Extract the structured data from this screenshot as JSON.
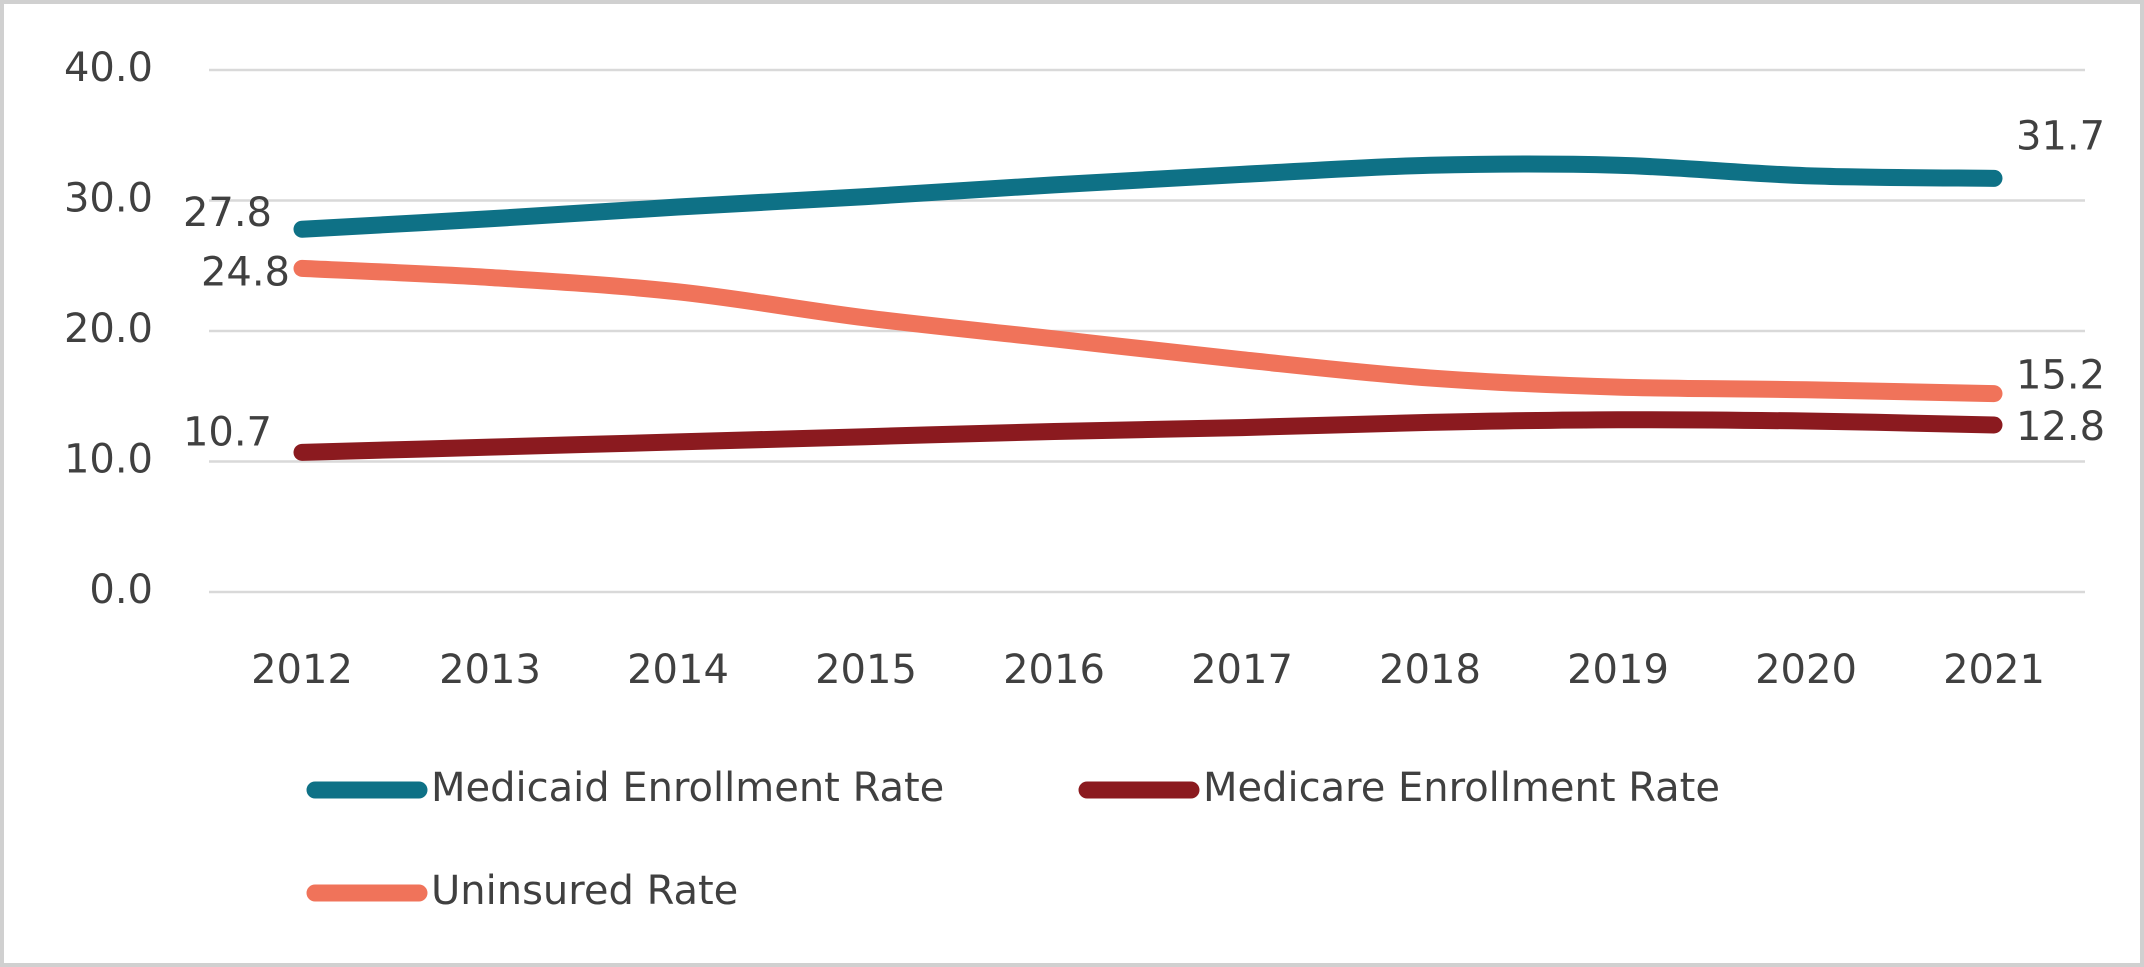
{
  "chart_data": {
    "type": "line",
    "categories": [
      "2012",
      "2013",
      "2014",
      "2015",
      "2016",
      "2017",
      "2018",
      "2019",
      "2020",
      "2021"
    ],
    "series": [
      {
        "name": "Medicaid Enrollment Rate",
        "color": "#0e7186",
        "values": [
          27.8,
          28.6,
          29.5,
          30.3,
          31.2,
          32.0,
          32.7,
          32.7,
          31.9,
          31.7
        ]
      },
      {
        "name": "Medicare Enrollment Rate",
        "color": "#8b1a1f",
        "values": [
          10.7,
          11.1,
          11.5,
          11.9,
          12.3,
          12.6,
          13.0,
          13.2,
          13.1,
          12.8
        ]
      },
      {
        "name": "Uninsured Rate",
        "color": "#f0735a",
        "values": [
          24.8,
          24.1,
          23.0,
          21.0,
          19.4,
          17.8,
          16.4,
          15.7,
          15.5,
          15.2
        ]
      }
    ],
    "ylim": [
      0,
      40
    ],
    "yticks": [
      {
        "value": 0,
        "label": "0.0"
      },
      {
        "value": 10,
        "label": "10.0"
      },
      {
        "value": 20,
        "label": "20.0"
      },
      {
        "value": 30,
        "label": "30.0"
      },
      {
        "value": 40,
        "label": "40.0"
      }
    ],
    "grid": true
  }
}
